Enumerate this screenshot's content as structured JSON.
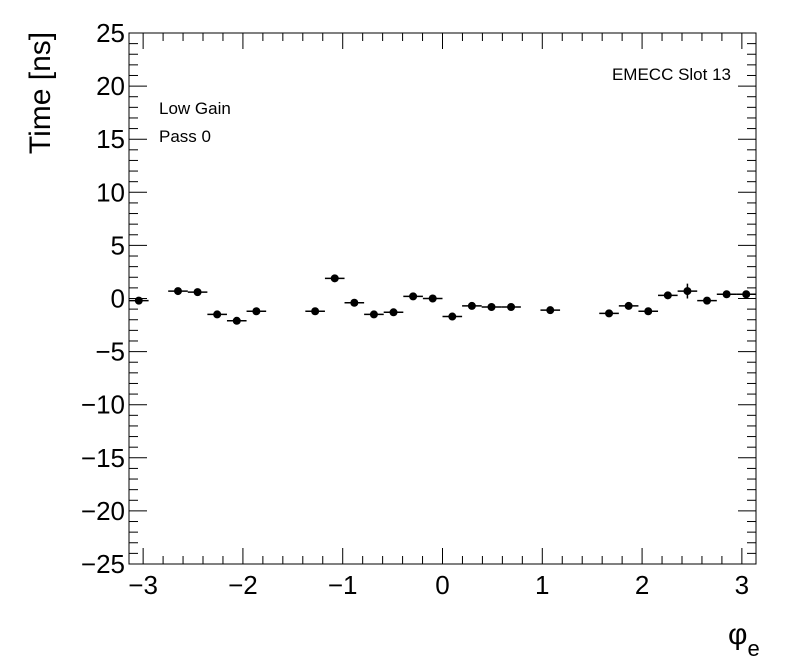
{
  "chart_data": {
    "type": "scatter",
    "title": "",
    "xlabel": "φ",
    "xlabel_sub": "e",
    "ylabel": "Time [ns]",
    "xlim": [
      -3.1416,
      3.1416
    ],
    "ylim": [
      -25,
      25
    ],
    "xticks": [
      -3,
      -2,
      -1,
      0,
      1,
      2,
      3
    ],
    "xtick_labels": [
      "−3",
      "−2",
      "−1",
      "0",
      "1",
      "2",
      "3"
    ],
    "yticks": [
      -25,
      -20,
      -15,
      -10,
      -5,
      0,
      5,
      10,
      15,
      20,
      25
    ],
    "ytick_labels": [
      "−25",
      "−20",
      "−15",
      "−10",
      "−5",
      "0",
      "5",
      "10",
      "15",
      "20",
      "25"
    ],
    "annotations": {
      "top_right": "EMECC Slot 13",
      "line1": "Low Gain",
      "line2": "Pass 0"
    },
    "bin_half_width": 0.0982,
    "points": [
      {
        "x": -3.0434,
        "y": -0.2,
        "yerr": 0.2
      },
      {
        "x": -2.6507,
        "y": 0.7,
        "yerr": 0.2
      },
      {
        "x": -2.4544,
        "y": 0.6,
        "yerr": 0.2
      },
      {
        "x": -2.258,
        "y": -1.5,
        "yerr": 0.2
      },
      {
        "x": -2.0617,
        "y": -2.1,
        "yerr": 0.2
      },
      {
        "x": -1.8653,
        "y": -1.2,
        "yerr": 0.2
      },
      {
        "x": -1.2763,
        "y": -1.2,
        "yerr": 0.2
      },
      {
        "x": -1.0799,
        "y": 1.9,
        "yerr": 0.3
      },
      {
        "x": -0.8836,
        "y": -0.4,
        "yerr": 0.2
      },
      {
        "x": -0.6872,
        "y": -1.5,
        "yerr": 0.2
      },
      {
        "x": -0.4909,
        "y": -1.3,
        "yerr": 0.2
      },
      {
        "x": -0.2945,
        "y": 0.2,
        "yerr": 0.2
      },
      {
        "x": -0.0982,
        "y": 0.0,
        "yerr": 0.2
      },
      {
        "x": 0.0982,
        "y": -1.7,
        "yerr": 0.2
      },
      {
        "x": 0.2945,
        "y": -0.7,
        "yerr": 0.2
      },
      {
        "x": 0.4909,
        "y": -0.8,
        "yerr": 0.2
      },
      {
        "x": 0.6872,
        "y": -0.8,
        "yerr": 0.2
      },
      {
        "x": 1.0799,
        "y": -1.1,
        "yerr": 0.2
      },
      {
        "x": 1.669,
        "y": -1.4,
        "yerr": 0.2
      },
      {
        "x": 1.8653,
        "y": -0.7,
        "yerr": 0.2
      },
      {
        "x": 2.0617,
        "y": -1.2,
        "yerr": 0.2
      },
      {
        "x": 2.258,
        "y": 0.3,
        "yerr": 0.2
      },
      {
        "x": 2.4544,
        "y": 0.7,
        "yerr": 0.7
      },
      {
        "x": 2.6507,
        "y": -0.2,
        "yerr": 0.2
      },
      {
        "x": 2.8471,
        "y": 0.4,
        "yerr": 0.2
      },
      {
        "x": 3.0434,
        "y": 0.4,
        "yerr": 0.2
      }
    ]
  }
}
